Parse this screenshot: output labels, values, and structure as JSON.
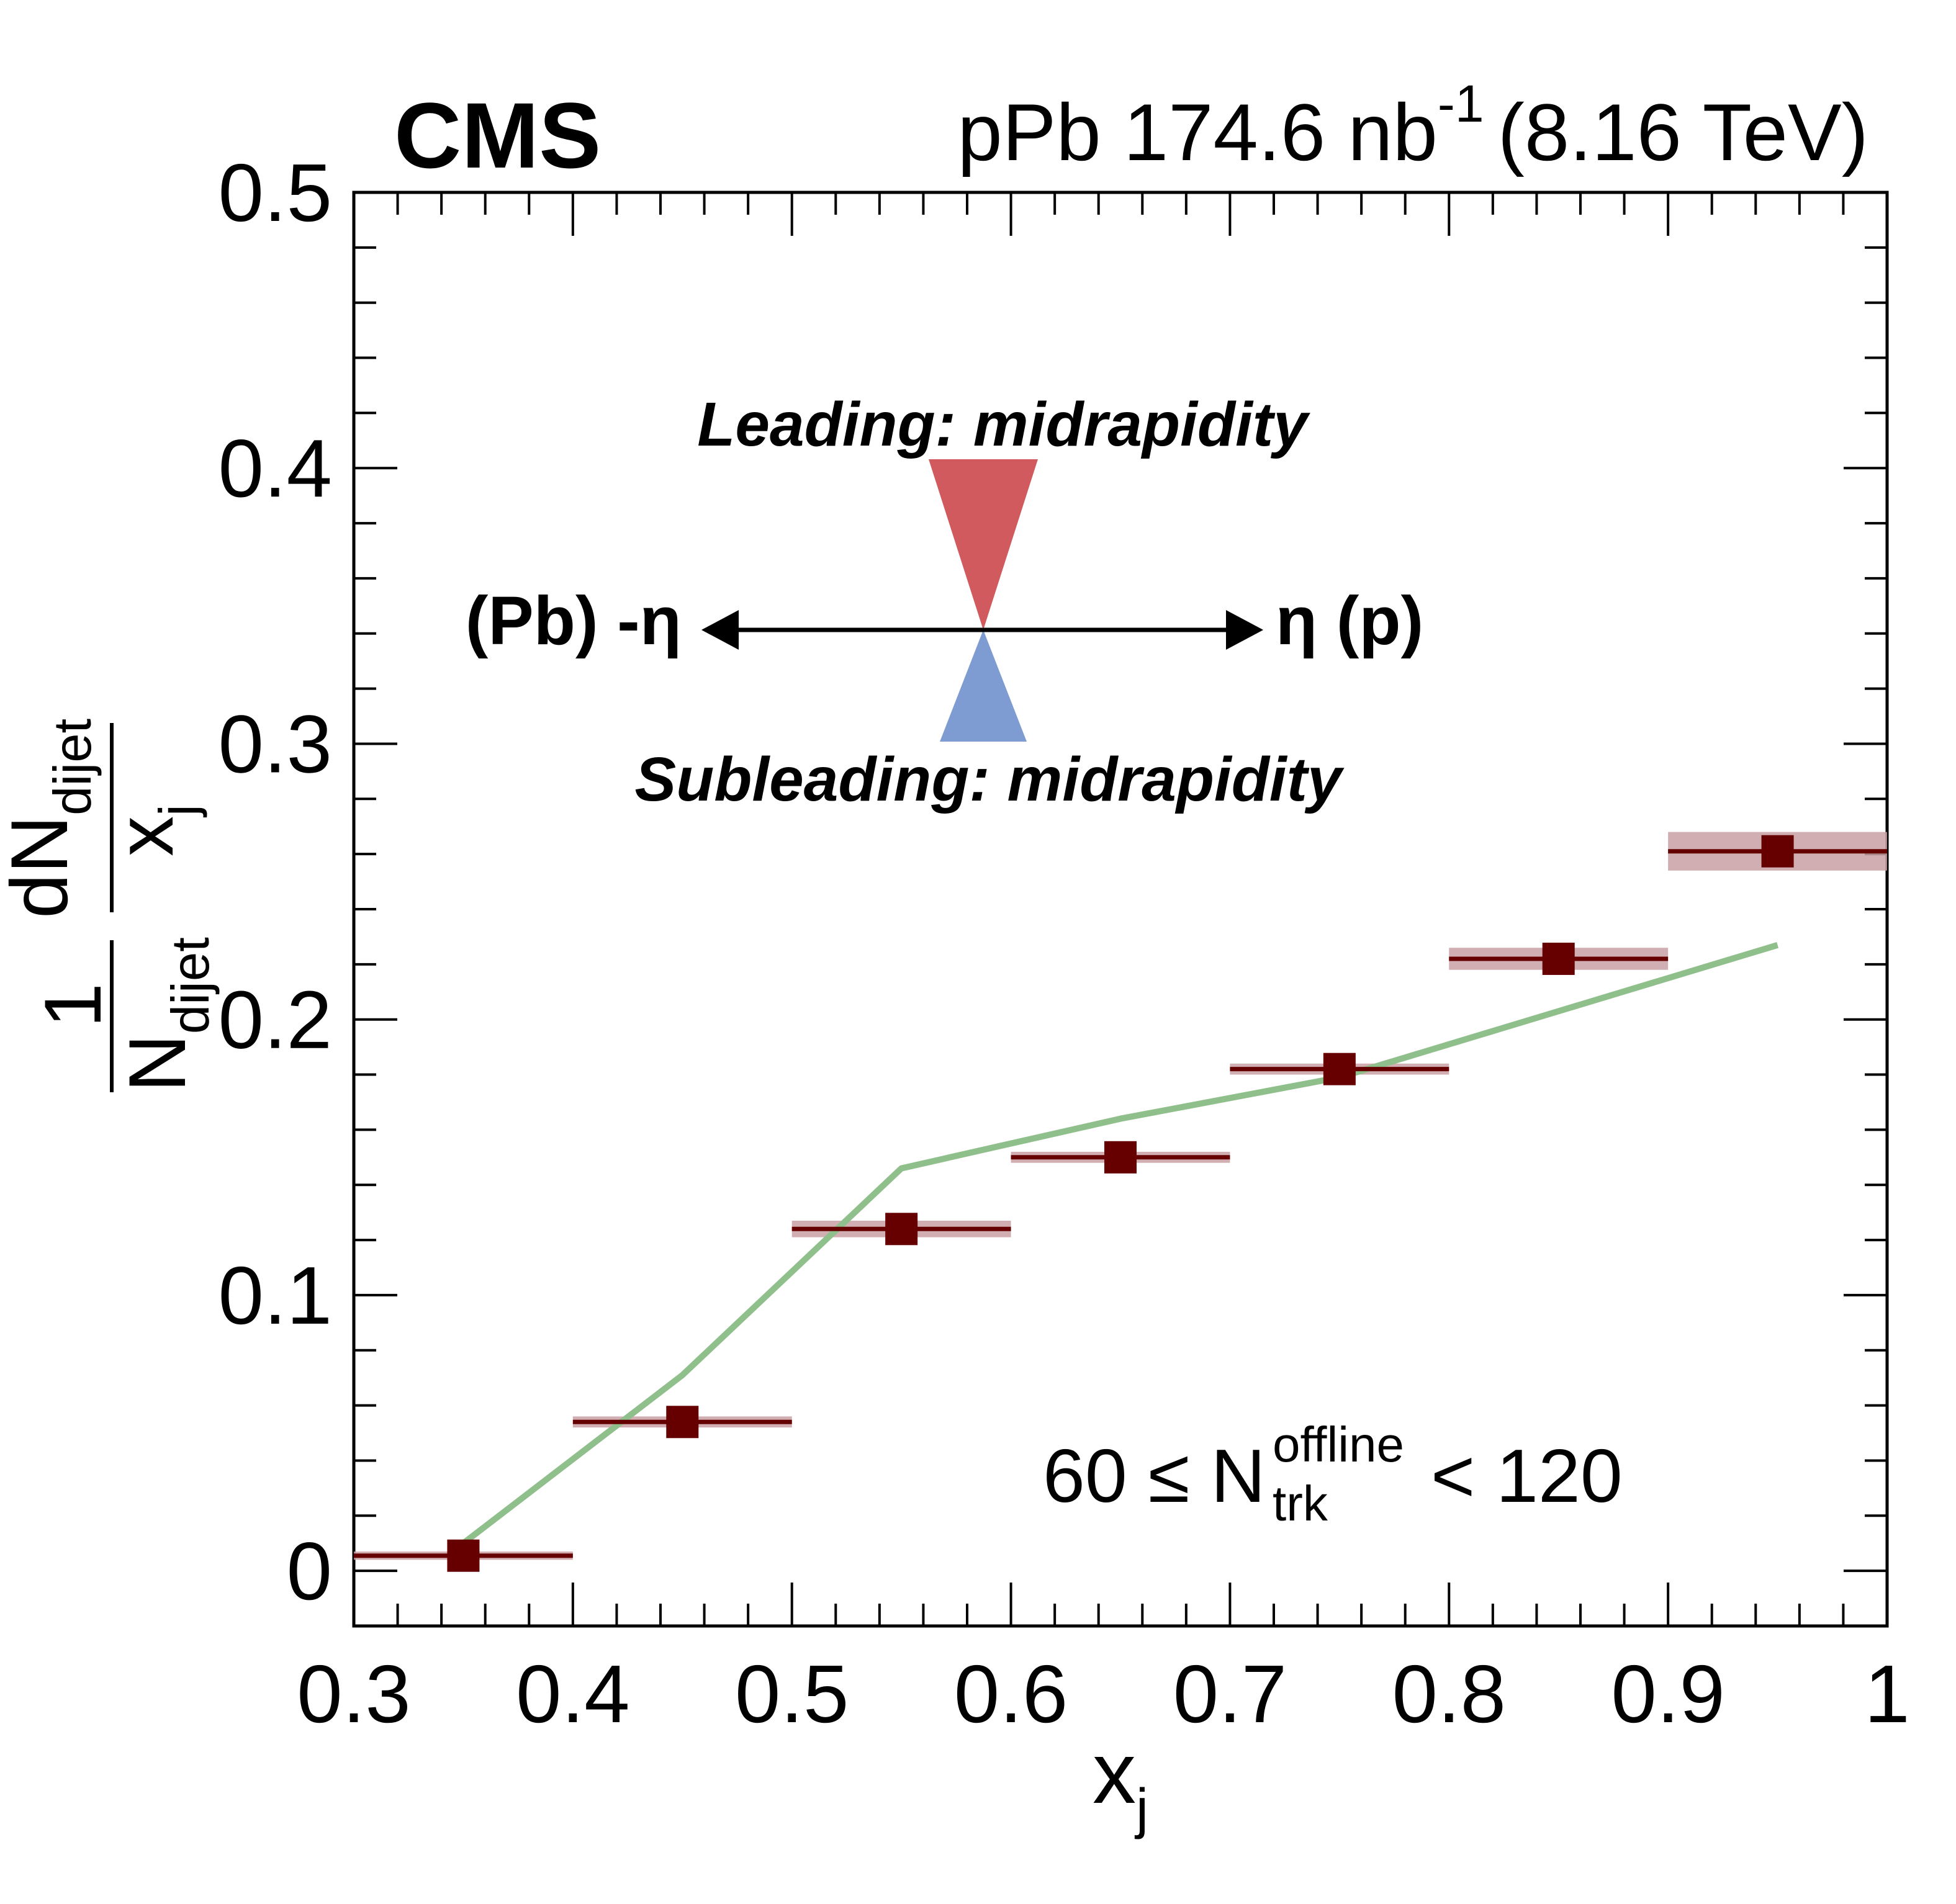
{
  "chart_data": {
    "type": "scatter",
    "experiment": "CMS",
    "luminosity": {
      "system": "pPb",
      "value": "174.6",
      "unit": "nb",
      "exponent": "-1",
      "energy": "(8.16 TeV)"
    },
    "xlabel": {
      "main": "x",
      "sub": "j"
    },
    "ylabel": {
      "numerator": "1",
      "denominator_main": "N",
      "denominator_sub": "dijet",
      "frac_num_main": "dN",
      "frac_num_sub": "dijet",
      "frac_den_main": "x",
      "frac_den_sub": "j"
    },
    "xlim": [
      0.3,
      1.0
    ],
    "ylim": [
      -0.02,
      0.5
    ],
    "x_ticks": [
      "0.3",
      "0.4",
      "0.5",
      "0.6",
      "0.7",
      "0.8",
      "0.9",
      "1"
    ],
    "y_ticks": [
      "0",
      "0.1",
      "0.2",
      "0.3",
      "0.4",
      "0.5"
    ],
    "series": [
      {
        "type": "points",
        "color": "#660000",
        "band_color": "#c9a0a3",
        "points": [
          {
            "x": 0.35,
            "xlo": 0.3,
            "xhi": 0.4,
            "y": 0.0055,
            "sys": 0.0015
          },
          {
            "x": 0.45,
            "xlo": 0.4,
            "xhi": 0.5,
            "y": 0.054,
            "sys": 0.002
          },
          {
            "x": 0.55,
            "xlo": 0.5,
            "xhi": 0.6,
            "y": 0.124,
            "sys": 0.003
          },
          {
            "x": 0.65,
            "xlo": 0.6,
            "xhi": 0.7,
            "y": 0.15,
            "sys": 0.002
          },
          {
            "x": 0.75,
            "xlo": 0.7,
            "xhi": 0.8,
            "y": 0.182,
            "sys": 0.002
          },
          {
            "x": 0.85,
            "xlo": 0.8,
            "xhi": 0.9,
            "y": 0.222,
            "sys": 0.004
          },
          {
            "x": 0.95,
            "xlo": 0.9,
            "xhi": 1.0,
            "y": 0.261,
            "sys": 0.007
          }
        ]
      },
      {
        "type": "line",
        "color": "#8fbf8a",
        "points": [
          {
            "x": 0.35,
            "y": 0.01
          },
          {
            "x": 0.45,
            "y": 0.071
          },
          {
            "x": 0.55,
            "y": 0.146
          },
          {
            "x": 0.65,
            "y": 0.164
          },
          {
            "x": 0.75,
            "y": 0.179
          },
          {
            "x": 0.85,
            "y": 0.203
          },
          {
            "x": 0.95,
            "y": 0.227
          }
        ]
      }
    ],
    "annotations": {
      "leading": {
        "text": "Leading: midrapidity",
        "color": "#d05a5e"
      },
      "subleading": {
        "text": "Subleading: midrapidity",
        "color": "#7f9cd2"
      },
      "left_arrow_label": "(Pb) -η",
      "right_arrow_label": "η (p)",
      "ntrk": {
        "prefix": "60 ≤ N",
        "sup": "offline",
        "sub": "trk",
        "suffix": "< 120"
      }
    }
  }
}
